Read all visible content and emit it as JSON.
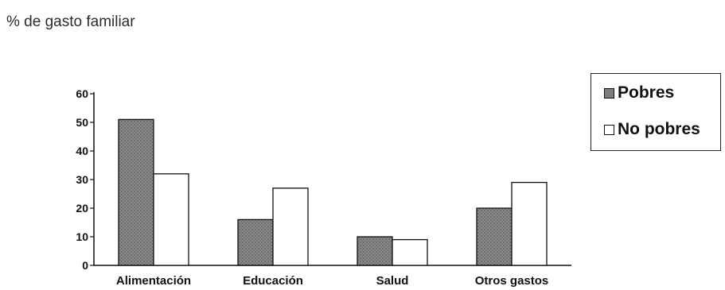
{
  "chart_data": {
    "type": "bar",
    "title": "% de gasto familiar",
    "categories": [
      "Alimentación",
      "Educación",
      "Salud",
      "Otros gastos"
    ],
    "series": [
      {
        "name": "Pobres",
        "values": [
          51,
          16,
          10,
          20
        ],
        "color": "#7d7d7d"
      },
      {
        "name": "No pobres",
        "values": [
          32,
          27,
          9,
          29
        ],
        "color": "#ffffff"
      }
    ],
    "ylim": [
      0,
      60
    ],
    "yticks": [
      "0",
      "10",
      "20",
      "30",
      "40",
      "50",
      "60"
    ],
    "legend_position": "right",
    "grid": false
  }
}
